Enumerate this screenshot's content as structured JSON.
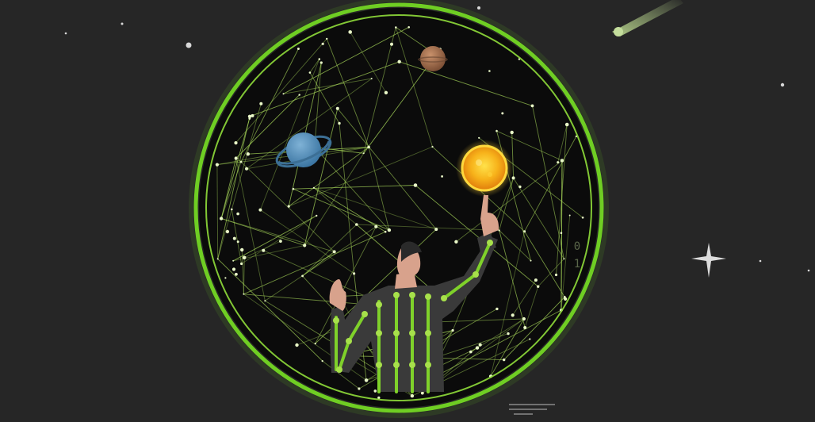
{
  "scene": {
    "background": "#262626",
    "accent": "#7fd12a",
    "network_color": "#a8d85a",
    "sphere_fill": "#0b0b0b"
  },
  "objects": {
    "sphere": "network-sphere",
    "planets": [
      "ringed-blue-planet",
      "small-brown-planet",
      "glowing-sun"
    ],
    "figure": "person-with-motion-capture-joints",
    "comet": "comet-top-right",
    "sparkle": "four-point-star-sparkle"
  },
  "side_digits": [
    "0",
    "1"
  ]
}
